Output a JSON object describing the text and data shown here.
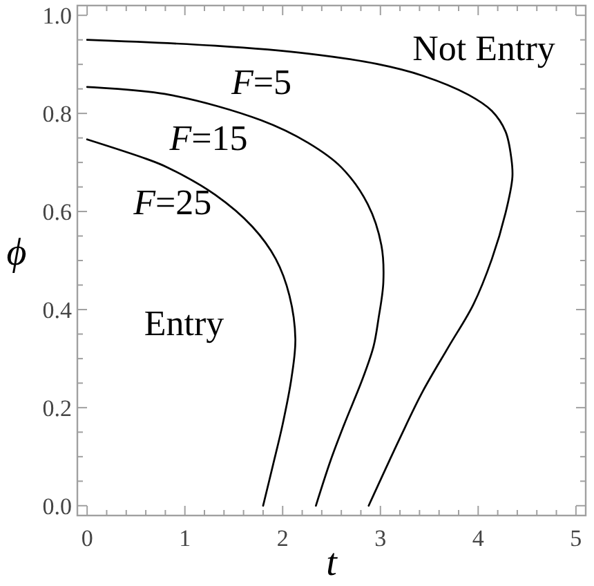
{
  "chart_data": {
    "type": "line",
    "xlabel": "t",
    "ylabel": "ϕ",
    "xlim": [
      -0.1,
      5.1
    ],
    "ylim": [
      -0.02,
      1.02
    ],
    "xticks": [
      0,
      {
        "value": 0.2,
        "label": null
      },
      {
        "value": 0.4,
        "label": null
      },
      {
        "value": 0.6,
        "label": null
      },
      {
        "value": 0.8,
        "label": null
      },
      1,
      {
        "value": 1.2,
        "label": null
      },
      {
        "value": 1.4,
        "label": null
      },
      {
        "value": 1.6,
        "label": null
      },
      {
        "value": 1.8,
        "label": null
      },
      2,
      {
        "value": 2.2,
        "label": null
      },
      {
        "value": 2.4,
        "label": null
      },
      {
        "value": 2.6,
        "label": null
      },
      {
        "value": 2.8,
        "label": null
      },
      3,
      {
        "value": 3.2,
        "label": null
      },
      {
        "value": 3.4,
        "label": null
      },
      {
        "value": 3.6,
        "label": null
      },
      {
        "value": 3.8,
        "label": null
      },
      4,
      {
        "value": 4.2,
        "label": null
      },
      {
        "value": 4.4,
        "label": null
      },
      {
        "value": 4.6,
        "label": null
      },
      {
        "value": 4.8,
        "label": null
      },
      5
    ],
    "yticks": [
      {
        "value": 0,
        "label": "0.0"
      },
      {
        "value": 0.05,
        "label": null
      },
      {
        "value": 0.1,
        "label": null
      },
      {
        "value": 0.15,
        "label": null
      },
      0.2,
      {
        "value": 0.25,
        "label": null
      },
      {
        "value": 0.3,
        "label": null
      },
      {
        "value": 0.35,
        "label": null
      },
      0.4,
      {
        "value": 0.45,
        "label": null
      },
      {
        "value": 0.5,
        "label": null
      },
      {
        "value": 0.55,
        "label": null
      },
      0.6,
      {
        "value": 0.65,
        "label": null
      },
      {
        "value": 0.7,
        "label": null
      },
      {
        "value": 0.75,
        "label": null
      },
      0.8,
      {
        "value": 0.85,
        "label": null
      },
      {
        "value": 0.9,
        "label": null
      },
      {
        "value": 0.95,
        "label": null
      },
      {
        "value": 1,
        "label": "1.0"
      }
    ],
    "annotations": [
      "Not Entry",
      "Entry"
    ],
    "series": [
      {
        "name": "F=5",
        "color": "#000000",
        "x": [
          0,
          1.31,
          2.26,
          2.96,
          3.43,
          3.9,
          4.14,
          4.28,
          4.34,
          4.35,
          4.28,
          4.14,
          3.95,
          3.7,
          3.43,
          3.2,
          2.88
        ],
        "values": [
          0.95,
          0.938,
          0.922,
          0.901,
          0.877,
          0.838,
          0.805,
          0.763,
          0.707,
          0.67,
          0.597,
          0.503,
          0.41,
          0.325,
          0.232,
          0.138,
          0
        ]
      },
      {
        "name": "F=15",
        "color": "#000000",
        "x": [
          0,
          0.84,
          1.78,
          2.26,
          2.6,
          2.87,
          3.01,
          3.03,
          2.98,
          2.93,
          2.82,
          2.63,
          2.49,
          2.34
        ],
        "values": [
          0.854,
          0.838,
          0.786,
          0.74,
          0.69,
          0.615,
          0.531,
          0.456,
          0.381,
          0.325,
          0.26,
          0.166,
          0.092,
          0
        ]
      },
      {
        "name": "F=25",
        "color": "#000000",
        "x": [
          0,
          0.61,
          0.82,
          1.31,
          1.69,
          1.93,
          2.07,
          2.13,
          2.09,
          2,
          1.9,
          1.8
        ],
        "values": [
          0.747,
          0.707,
          0.69,
          0.634,
          0.569,
          0.503,
          0.428,
          0.34,
          0.26,
          0.166,
          0.082,
          0
        ]
      }
    ]
  }
}
